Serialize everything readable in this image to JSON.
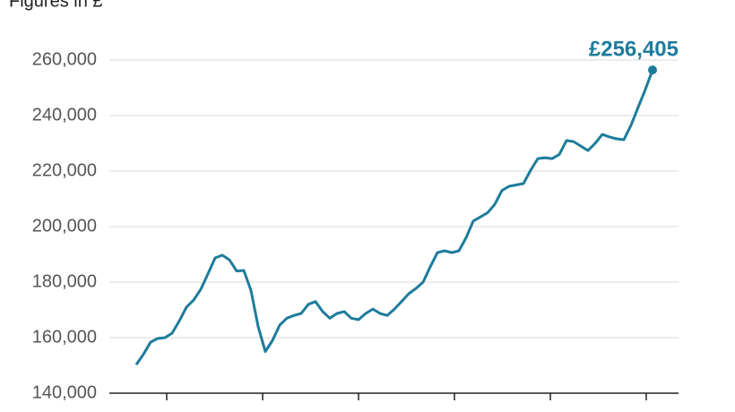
{
  "chart_data": {
    "type": "line",
    "subtitle": "Figures in £",
    "categories": [
      null,
      null,
      null,
      null,
      null,
      null,
      null,
      null,
      null,
      null,
      null,
      null,
      null,
      null,
      null,
      null,
      null,
      null,
      null,
      null,
      null,
      null,
      null,
      null,
      null,
      null,
      null,
      null,
      null,
      null,
      null,
      null,
      null,
      null,
      null,
      null,
      null,
      null,
      null,
      null,
      null,
      null,
      null,
      null,
      null,
      null,
      null,
      null,
      null,
      null,
      null,
      null,
      null,
      null,
      null,
      null,
      null,
      null,
      null,
      null,
      null,
      null,
      null,
      null,
      null,
      null,
      null,
      null,
      null,
      null,
      null,
      null,
      null
    ],
    "values": [
      150300,
      154000,
      158400,
      159700,
      160000,
      161600,
      166000,
      171000,
      173500,
      177400,
      183000,
      188700,
      189700,
      188000,
      184000,
      184200,
      177000,
      164000,
      155000,
      159000,
      164500,
      167000,
      168000,
      168700,
      172000,
      173000,
      169400,
      167000,
      168700,
      169400,
      167000,
      166500,
      168700,
      170300,
      168700,
      168000,
      170300,
      173000,
      175800,
      177700,
      180000,
      185500,
      190600,
      191300,
      190600,
      191300,
      196000,
      202000,
      203500,
      205000,
      208000,
      213000,
      214500,
      215000,
      215500,
      220300,
      224500,
      224800,
      224500,
      226000,
      231000,
      230600,
      229000,
      227400,
      230000,
      233200,
      232300,
      231600,
      231300,
      236500,
      243000,
      249400,
      256405
    ],
    "color": "#1d7c9b",
    "annotation": "£256,405",
    "ylim": [
      140000,
      266000
    ],
    "yticks": [
      {
        "value": 140000,
        "label": "140,000"
      },
      {
        "value": 160000,
        "label": "160,000"
      },
      {
        "value": 180000,
        "label": "180,000"
      },
      {
        "value": 200000,
        "label": "200,000"
      },
      {
        "value": 220000,
        "label": "220,000"
      },
      {
        "value": 240000,
        "label": "240,000"
      },
      {
        "value": 260000,
        "label": "260,000"
      }
    ],
    "grid": true
  }
}
